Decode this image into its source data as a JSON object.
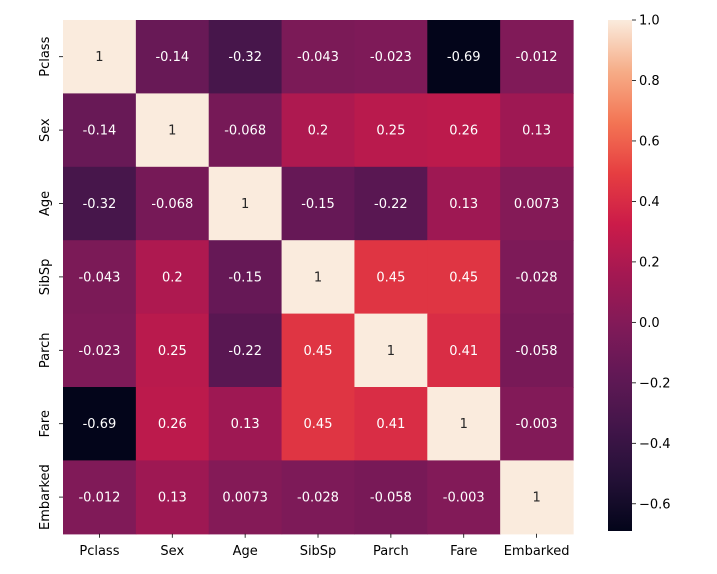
{
  "chart_data": {
    "type": "heatmap",
    "x_labels": [
      "Pclass",
      "Sex",
      "Age",
      "SibSp",
      "Parch",
      "Fare",
      "Embarked"
    ],
    "y_labels": [
      "Pclass",
      "Sex",
      "Age",
      "SibSp",
      "Parch",
      "Fare",
      "Embarked"
    ],
    "values": [
      [
        1,
        -0.14,
        -0.32,
        -0.043,
        -0.023,
        -0.69,
        -0.012
      ],
      [
        -0.14,
        1,
        -0.068,
        0.2,
        0.25,
        0.26,
        0.13
      ],
      [
        -0.32,
        -0.068,
        1,
        -0.15,
        -0.22,
        0.13,
        0.0073
      ],
      [
        -0.043,
        0.2,
        -0.15,
        1,
        0.45,
        0.45,
        -0.028
      ],
      [
        -0.023,
        0.25,
        -0.22,
        0.45,
        1,
        0.41,
        -0.058
      ],
      [
        -0.69,
        0.26,
        0.13,
        0.45,
        0.41,
        1,
        -0.003
      ],
      [
        -0.012,
        0.13,
        0.0073,
        -0.028,
        -0.058,
        -0.003,
        1
      ]
    ],
    "cell_labels": [
      [
        "1",
        "-0.14",
        "-0.32",
        "-0.043",
        "-0.023",
        "-0.69",
        "-0.012"
      ],
      [
        "-0.14",
        "1",
        "-0.068",
        "0.2",
        "0.25",
        "0.26",
        "0.13"
      ],
      [
        "-0.32",
        "-0.068",
        "1",
        "-0.15",
        "-0.22",
        "0.13",
        "0.0073"
      ],
      [
        "-0.043",
        "0.2",
        "-0.15",
        "1",
        "0.45",
        "0.45",
        "-0.028"
      ],
      [
        "-0.023",
        "0.25",
        "-0.22",
        "0.45",
        "1",
        "0.41",
        "-0.058"
      ],
      [
        "-0.69",
        "0.26",
        "0.13",
        "0.45",
        "0.41",
        "1",
        "-0.003"
      ],
      [
        "-0.012",
        "0.13",
        "0.0073",
        "-0.028",
        "-0.058",
        "-0.003",
        "1"
      ]
    ],
    "vmin": -0.69,
    "vmax": 1.0,
    "colormap": "rocket",
    "colorbar": {
      "ticks": [
        1.0,
        0.8,
        0.6,
        0.4,
        0.2,
        0.0,
        -0.2,
        -0.4,
        -0.6
      ],
      "tick_labels": [
        "1.0",
        "0.8",
        "0.6",
        "0.4",
        "0.2",
        "0.0",
        "−0.2",
        "−0.4",
        "−0.6"
      ],
      "placement": "right"
    },
    "title": "",
    "xlabel": "",
    "ylabel": ""
  }
}
